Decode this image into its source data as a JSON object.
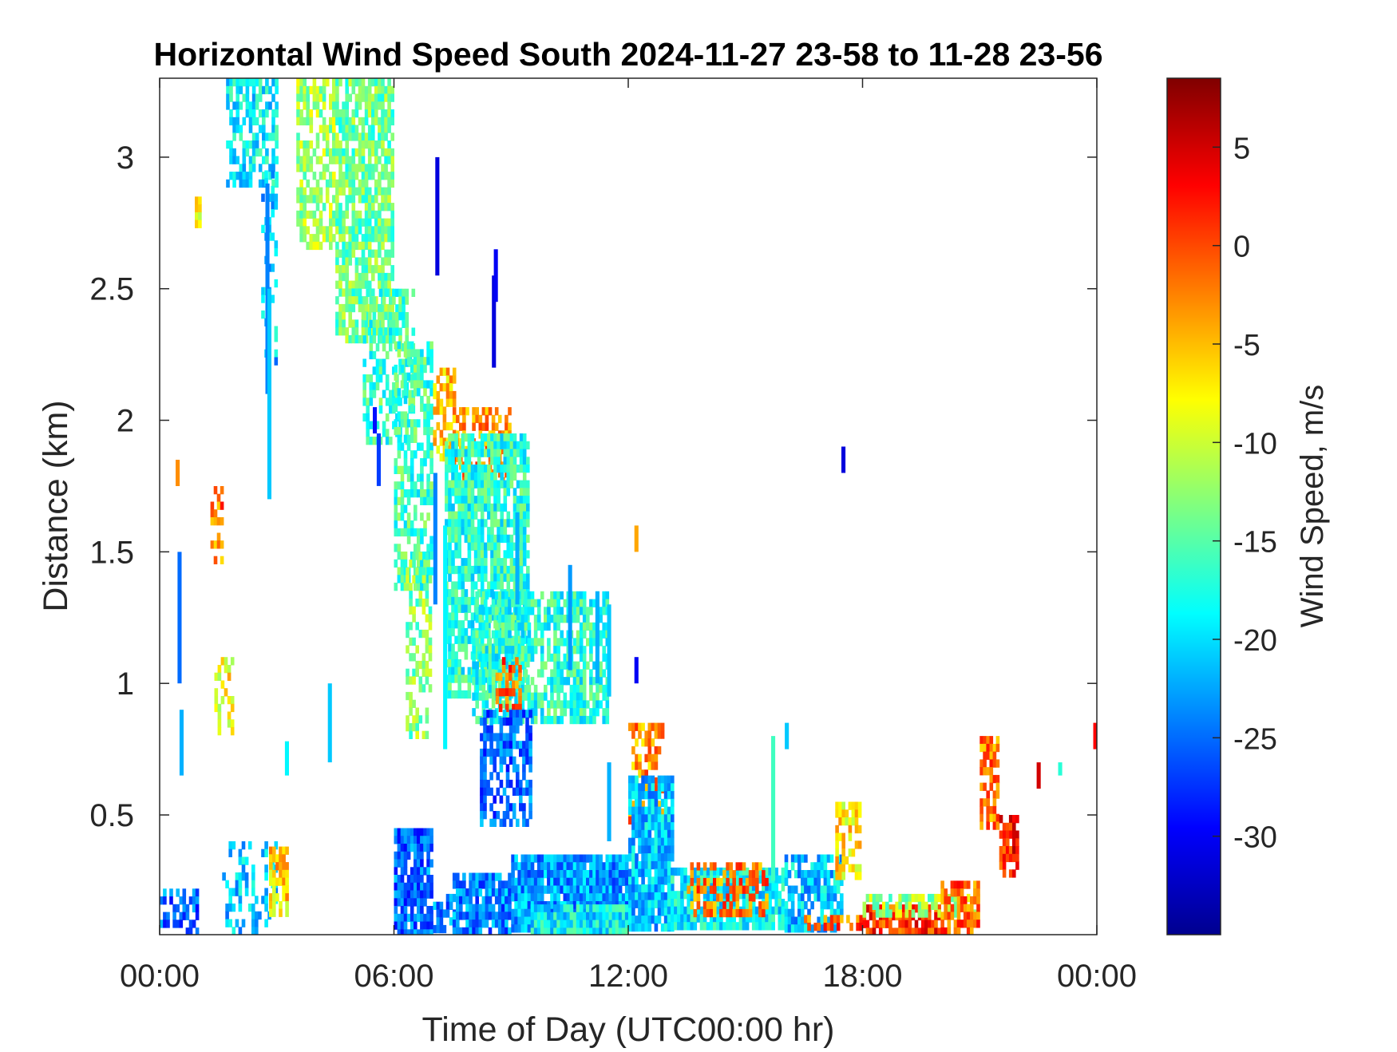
{
  "chart_data": {
    "type": "heatmap",
    "title": "Horizontal Wind Speed South 2024-11-27 23-58 to 11-28 23-56",
    "xlabel": "Time of Day (UTC00:00 hr)",
    "ylabel": "Distance (km)",
    "colorbar_label": "Wind Speed, m/s",
    "xlim_hours": [
      0,
      24
    ],
    "ylim_km": [
      0.045,
      3.3
    ],
    "clim": [
      -35,
      8.5
    ],
    "x_ticks": [
      {
        "value": 0,
        "label": "00:00"
      },
      {
        "value": 6,
        "label": "06:00"
      },
      {
        "value": 12,
        "label": "12:00"
      },
      {
        "value": 18,
        "label": "18:00"
      },
      {
        "value": 24,
        "label": "00:00"
      }
    ],
    "y_ticks": [
      {
        "value": 0.5,
        "label": "0.5"
      },
      {
        "value": 1,
        "label": "1"
      },
      {
        "value": 1.5,
        "label": "1.5"
      },
      {
        "value": 2,
        "label": "2"
      },
      {
        "value": 2.5,
        "label": "2.5"
      },
      {
        "value": 3,
        "label": "3"
      }
    ],
    "colorbar_ticks": [
      {
        "value": 5,
        "label": "5"
      },
      {
        "value": 0,
        "label": "0"
      },
      {
        "value": -5,
        "label": "-5"
      },
      {
        "value": -10,
        "label": "-10"
      },
      {
        "value": -15,
        "label": "-15"
      },
      {
        "value": -20,
        "label": "-20"
      },
      {
        "value": -25,
        "label": "-25"
      },
      {
        "value": -30,
        "label": "-30"
      }
    ],
    "colormap": "jet",
    "grid": false,
    "regions": [
      {
        "t0": 0.0,
        "t1": 1.0,
        "h0": 0.05,
        "h1": 0.22,
        "v": -25,
        "density": 0.55
      },
      {
        "t0": 1.6,
        "t1": 3.0,
        "h0": 0.05,
        "h1": 0.4,
        "v": -21,
        "density": 0.35
      },
      {
        "t0": 2.8,
        "t1": 3.3,
        "h0": 0.12,
        "h1": 0.38,
        "v": -6,
        "density": 0.7
      },
      {
        "t0": 1.7,
        "t1": 3.0,
        "h0": 2.9,
        "h1": 3.3,
        "v": -19,
        "density": 0.6
      },
      {
        "t0": 2.6,
        "t1": 3.0,
        "h0": 2.2,
        "h1": 2.95,
        "v": -21,
        "density": 0.35
      },
      {
        "t0": 3.5,
        "t1": 4.5,
        "h0": 2.65,
        "h1": 3.3,
        "v": -12,
        "density": 0.65
      },
      {
        "t0": 4.5,
        "t1": 6.0,
        "h0": 2.3,
        "h1": 3.3,
        "v": -14,
        "density": 0.75
      },
      {
        "t0": 5.2,
        "t1": 6.5,
        "h0": 1.9,
        "h1": 2.5,
        "v": -16,
        "density": 0.55
      },
      {
        "t0": 6.0,
        "t1": 7.0,
        "h0": 1.35,
        "h1": 2.3,
        "v": -16,
        "density": 0.55
      },
      {
        "t0": 6.3,
        "t1": 7.0,
        "h0": 0.75,
        "h1": 1.5,
        "v": -13,
        "density": 0.45
      },
      {
        "t0": 7.0,
        "t1": 7.6,
        "h0": 1.85,
        "h1": 2.2,
        "v": -5,
        "density": 0.55
      },
      {
        "t0": 7.5,
        "t1": 9.0,
        "h0": 1.75,
        "h1": 2.05,
        "v": -3,
        "density": 0.55
      },
      {
        "t0": 7.3,
        "t1": 9.5,
        "h0": 0.95,
        "h1": 1.95,
        "v": -17,
        "density": 0.8
      },
      {
        "t0": 8.0,
        "t1": 11.5,
        "h0": 0.85,
        "h1": 1.35,
        "v": -17,
        "density": 0.7
      },
      {
        "t0": 8.6,
        "t1": 9.3,
        "h0": 0.9,
        "h1": 1.1,
        "v": -1,
        "density": 0.5
      },
      {
        "t0": 8.2,
        "t1": 9.5,
        "h0": 0.45,
        "h1": 0.9,
        "v": -25,
        "density": 0.65
      },
      {
        "t0": 6.0,
        "t1": 7.0,
        "h0": 0.05,
        "h1": 0.45,
        "v": -25,
        "density": 0.9
      },
      {
        "t0": 7.0,
        "t1": 7.6,
        "h0": 0.05,
        "h1": 0.2,
        "v": -24,
        "density": 0.5
      },
      {
        "t0": 7.5,
        "t1": 9.0,
        "h0": 0.05,
        "h1": 0.28,
        "v": -24,
        "density": 0.9
      },
      {
        "t0": 9.0,
        "t1": 12.0,
        "h0": 0.05,
        "h1": 0.35,
        "v": -23,
        "density": 0.95
      },
      {
        "t0": 9.5,
        "t1": 12.0,
        "h0": 0.05,
        "h1": 0.16,
        "v": -19,
        "density": 0.95
      },
      {
        "t0": 12.0,
        "t1": 12.9,
        "h0": 0.45,
        "h1": 0.85,
        "v": -3,
        "density": 0.55
      },
      {
        "t0": 12.0,
        "t1": 13.2,
        "h0": 0.05,
        "h1": 0.65,
        "v": -21,
        "density": 0.85
      },
      {
        "t0": 13.0,
        "t1": 16.0,
        "h0": 0.05,
        "h1": 0.3,
        "v": -19,
        "density": 0.9
      },
      {
        "t0": 13.5,
        "t1": 15.6,
        "h0": 0.12,
        "h1": 0.32,
        "v": -2,
        "density": 0.55
      },
      {
        "t0": 16.0,
        "t1": 17.5,
        "h0": 0.05,
        "h1": 0.35,
        "v": -21,
        "density": 0.75
      },
      {
        "t0": 17.3,
        "t1": 18.0,
        "h0": 0.25,
        "h1": 0.55,
        "v": -7,
        "density": 0.55
      },
      {
        "t0": 16.5,
        "t1": 18.0,
        "h0": 0.05,
        "h1": 0.12,
        "v": -1,
        "density": 0.65
      },
      {
        "t0": 18.0,
        "t1": 20.0,
        "h0": 0.05,
        "h1": 0.16,
        "v": 1,
        "density": 0.85
      },
      {
        "t0": 18.0,
        "t1": 21.0,
        "h0": 0.12,
        "h1": 0.2,
        "v": -12,
        "density": 0.6
      },
      {
        "t0": 20.0,
        "t1": 21.0,
        "h0": 0.05,
        "h1": 0.25,
        "v": -1,
        "density": 0.7
      },
      {
        "t0": 21.0,
        "t1": 21.5,
        "h0": 0.45,
        "h1": 0.8,
        "v": -2,
        "density": 0.65
      },
      {
        "t0": 21.5,
        "t1": 22.0,
        "h0": 0.25,
        "h1": 0.5,
        "v": 2,
        "density": 0.8
      },
      {
        "t0": 1.3,
        "t1": 1.6,
        "h0": 1.45,
        "h1": 1.75,
        "v": -2,
        "density": 0.6
      },
      {
        "t0": 1.4,
        "t1": 1.9,
        "h0": 0.8,
        "h1": 1.1,
        "v": -8,
        "density": 0.5
      },
      {
        "t0": 0.9,
        "t1": 1.05,
        "h0": 2.7,
        "h1": 2.85,
        "v": -9,
        "density": 0.7
      }
    ],
    "streaks": [
      {
        "t": 0.45,
        "h0": 1.75,
        "h1": 1.85,
        "v": -3
      },
      {
        "t": 0.5,
        "h0": 1.0,
        "h1": 1.5,
        "v": -25
      },
      {
        "t": 0.55,
        "h0": 0.65,
        "h1": 0.9,
        "v": -22
      },
      {
        "t": 2.75,
        "h0": 2.1,
        "h1": 2.9,
        "v": -24
      },
      {
        "t": 2.8,
        "h0": 1.7,
        "h1": 2.5,
        "v": -21
      },
      {
        "t": 4.35,
        "h0": 0.7,
        "h1": 1.0,
        "v": -21
      },
      {
        "t": 3.25,
        "h0": 0.65,
        "h1": 0.78,
        "v": -19
      },
      {
        "t": 5.5,
        "h0": 1.95,
        "h1": 2.05,
        "v": -29
      },
      {
        "t": 5.6,
        "h0": 1.75,
        "h1": 1.95,
        "v": -27
      },
      {
        "t": 7.05,
        "h0": 1.3,
        "h1": 1.8,
        "v": -24
      },
      {
        "t": 7.1,
        "h0": 2.55,
        "h1": 3.0,
        "v": -31
      },
      {
        "t": 7.3,
        "h0": 0.75,
        "h1": 1.6,
        "v": -19
      },
      {
        "t": 8.55,
        "h0": 2.2,
        "h1": 2.55,
        "v": -31
      },
      {
        "t": 8.6,
        "h0": 2.45,
        "h1": 2.65,
        "v": -30
      },
      {
        "t": 9.15,
        "h0": 1.3,
        "h1": 1.65,
        "v": -22
      },
      {
        "t": 10.5,
        "h0": 1.05,
        "h1": 1.45,
        "v": -23
      },
      {
        "t": 11.2,
        "h0": 1.0,
        "h1": 1.35,
        "v": -22
      },
      {
        "t": 11.5,
        "h0": 0.95,
        "h1": 1.3,
        "v": -21
      },
      {
        "t": 11.5,
        "h0": 0.4,
        "h1": 0.7,
        "v": -22
      },
      {
        "t": 12.2,
        "h0": 1.5,
        "h1": 1.6,
        "v": -4
      },
      {
        "t": 12.2,
        "h0": 1.0,
        "h1": 1.1,
        "v": -30
      },
      {
        "t": 15.7,
        "h0": 0.25,
        "h1": 0.8,
        "v": -16
      },
      {
        "t": 16.05,
        "h0": 0.75,
        "h1": 0.85,
        "v": -21
      },
      {
        "t": 17.5,
        "h0": 1.8,
        "h1": 1.9,
        "v": -31
      },
      {
        "t": 23.05,
        "h0": 0.65,
        "h1": 0.7,
        "v": -17
      },
      {
        "t": 22.5,
        "h0": 0.6,
        "h1": 0.7,
        "v": 5
      },
      {
        "t": 23.95,
        "h0": 0.75,
        "h1": 0.85,
        "v": 3
      }
    ]
  }
}
